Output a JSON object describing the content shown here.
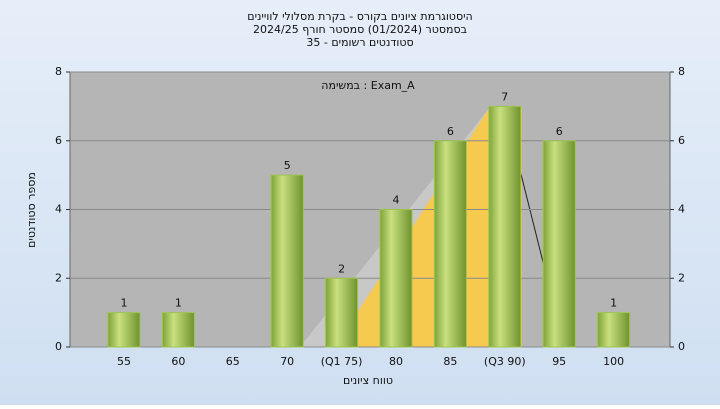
{
  "chart_data": {
    "type": "bar",
    "title": [
      "היסטוגרמת ציונים בקורס - בקרת מסלולי לוויינים",
      "בסמסטר  (01/2024)  סמסטר חורף 2024/25",
      "סטודנטים רשומים - 35"
    ],
    "annotation": "במשימה : Exam_A",
    "x_label": "טווח ציונים",
    "y_label": "מספר סטודנטים",
    "categories": [
      "55",
      "60",
      "65",
      "70",
      "(Q1 75)",
      "80",
      "85",
      "(Q3 90)",
      "95",
      "100"
    ],
    "values": [
      1,
      1,
      0,
      5,
      2,
      4,
      6,
      7,
      6,
      1
    ],
    "color": "#9dc34f",
    "ylim": [
      0,
      8
    ],
    "yticks": [
      0,
      2,
      4,
      6,
      8
    ],
    "grid": true
  }
}
